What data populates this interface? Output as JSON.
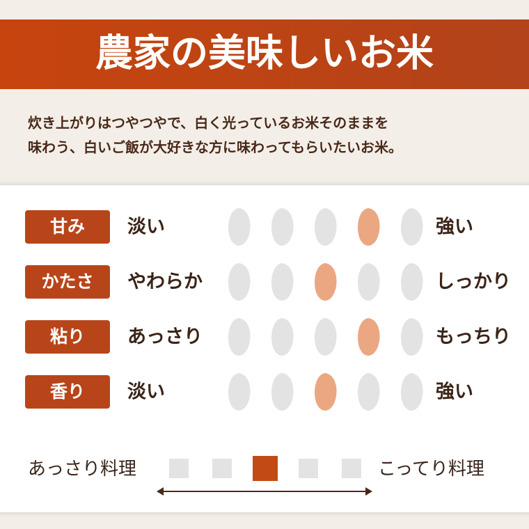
{
  "title": "農家の美味しいお米",
  "description": [
    "炊き上がりはつやつやで、白く光っているお米そのままを",
    "味わう、白いご飯が大好きな方に味わってもらいたいお米。"
  ],
  "taste_scale": {
    "steps": 5,
    "rows": [
      {
        "label": "甘み",
        "low": "淡い",
        "high": "強い",
        "level": 4
      },
      {
        "label": "かたさ",
        "low": "やわらか",
        "high": "しっかり",
        "level": 3
      },
      {
        "label": "粘り",
        "low": "あっさり",
        "high": "もっちり",
        "level": 4
      },
      {
        "label": "香り",
        "low": "淡い",
        "high": "強い",
        "level": 3
      }
    ]
  },
  "dish_scale": {
    "low": "あっさり料理",
    "high": "こってり料理",
    "steps": 5,
    "level": 3
  }
}
